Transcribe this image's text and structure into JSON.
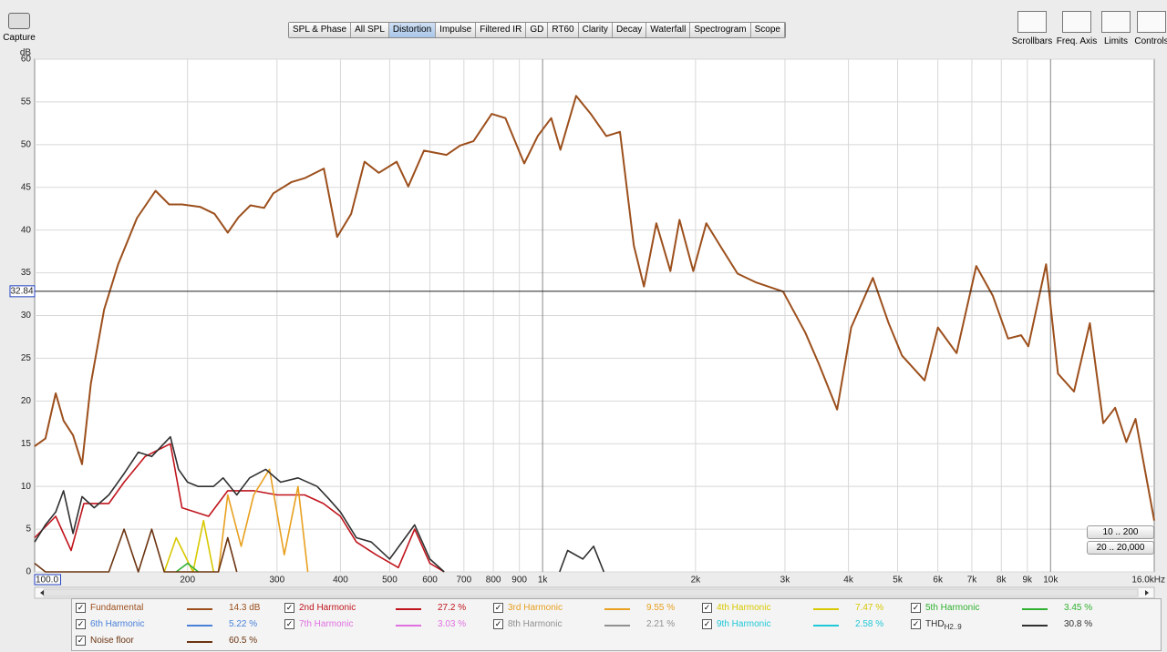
{
  "toolbar": {
    "capture": "Capture",
    "tabs": [
      "SPL & Phase",
      "All SPL",
      "Distortion",
      "Impulse",
      "Filtered IR",
      "GD",
      "RT60",
      "Clarity",
      "Decay",
      "Waterfall",
      "Spectrogram",
      "Scope"
    ],
    "selected_index": 2,
    "tools": [
      "Scrollbars",
      "Freq. Axis",
      "Limits",
      "Controls"
    ]
  },
  "chart_data": {
    "type": "line",
    "y_label": "dB",
    "log_x": true,
    "grid": true,
    "xlim": [
      100,
      16000
    ],
    "ylim": [
      0,
      60
    ],
    "yticks": [
      0,
      5,
      10,
      15,
      20,
      25,
      30,
      35,
      40,
      45,
      50,
      55,
      60
    ],
    "xticks": [
      {
        "value": 100,
        "label": "100.0"
      },
      200,
      300,
      400,
      500,
      600,
      700,
      800,
      900,
      {
        "value": 1000,
        "label": "1k"
      },
      {
        "value": 2000,
        "label": "2k"
      },
      {
        "value": 3000,
        "label": "3k"
      },
      {
        "value": 4000,
        "label": "4k"
      },
      {
        "value": 5000,
        "label": "5k"
      },
      {
        "value": 6000,
        "label": "6k"
      },
      {
        "value": 7000,
        "label": "7k"
      },
      {
        "value": 8000,
        "label": "8k"
      },
      {
        "value": 9000,
        "label": "9k"
      },
      {
        "value": 10000,
        "label": "10k"
      },
      {
        "value": 16000,
        "label": "16.0kHz"
      }
    ],
    "cursor": 32.84,
    "series": [
      {
        "name": "Fundamental",
        "color": "#9c4f1c",
        "readout": "14.3 dB",
        "x": [
          100,
          105,
          110,
          114,
          119,
          124,
          129,
          137,
          146,
          159,
          173,
          184,
          195,
          212,
          226,
          240,
          252,
          266,
          283,
          295,
          320,
          341,
          371,
          394,
          420,
          446,
          476,
          516,
          544,
          584,
          647,
          688,
          731,
          794,
          845,
          920,
          978,
          1040,
          1084,
          1164,
          1244,
          1335,
          1420,
          1512,
          1583,
          1675,
          1785,
          1860,
          1980,
          2100,
          2250,
          2420,
          2625,
          2975,
          3290,
          3500,
          3800,
          4050,
          4470,
          4800,
          5100,
          5650,
          6000,
          6530,
          7140,
          7700,
          8250,
          8750,
          9040,
          9800,
          10340,
          11120,
          11950,
          12700,
          13400,
          14100,
          14700,
          16000
        ],
        "values": [
          14.7,
          15.6,
          20.9,
          17.7,
          16,
          12.6,
          22,
          30.7,
          36,
          41.4,
          44.6,
          43,
          43,
          42.7,
          41.9,
          39.7,
          41.5,
          42.9,
          42.6,
          44.3,
          45.6,
          46.1,
          47.2,
          39.2,
          41.9,
          48,
          46.7,
          48,
          45.1,
          49.3,
          48.8,
          49.9,
          50.4,
          53.6,
          53.1,
          47.8,
          51,
          53.1,
          49.4,
          55.7,
          53.6,
          51,
          51.5,
          38.2,
          33.4,
          40.8,
          35.2,
          41.2,
          35.2,
          40.8,
          37.9,
          34.9,
          33.9,
          32.8,
          28,
          24.3,
          19,
          28.6,
          34.4,
          29.1,
          25.3,
          22.4,
          28.6,
          25.6,
          35.8,
          32.3,
          27.3,
          27.7,
          26.4,
          36,
          23.2,
          21.1,
          29.1,
          17.4,
          19.2,
          15.2,
          17.9,
          6
        ]
      },
      {
        "name": "2nd Harmonic",
        "color": "#c0141c",
        "readout": "27.2 %",
        "x": [
          100,
          110,
          118,
          125,
          140,
          150,
          165,
          185,
          195,
          220,
          240,
          270,
          300,
          340,
          370,
          400,
          430,
          470,
          520,
          560,
          600,
          640
        ],
        "values": [
          4,
          6.5,
          2.5,
          8,
          8,
          10.5,
          13.5,
          15,
          7.5,
          6.5,
          9.5,
          9.5,
          9,
          9,
          8,
          6.5,
          3.5,
          2,
          0.5,
          5,
          1,
          0
        ]
      },
      {
        "name": "3rd Harmonic",
        "color": "#e8a020",
        "readout": "9.55 %",
        "x": [
          230,
          240,
          255,
          270,
          290,
          310,
          330,
          345
        ],
        "values": [
          0,
          9,
          3,
          9,
          12,
          2,
          10,
          0
        ]
      },
      {
        "name": "4th Harmonic",
        "color": "#d8c800",
        "readout": "7.47 %",
        "x": [
          180,
          190,
          205,
          215,
          225
        ],
        "values": [
          0,
          4,
          0,
          6,
          0
        ]
      },
      {
        "name": "5th Harmonic",
        "color": "#30b030",
        "readout": "3.45 %",
        "x": [
          190,
          200,
          210
        ],
        "values": [
          0,
          1,
          0
        ]
      },
      {
        "name": "6th Harmonic",
        "color": "#4a80d8",
        "readout": "5.22 %"
      },
      {
        "name": "7th Harmonic",
        "color": "#e070e0",
        "readout": "3.03 %"
      },
      {
        "name": "8th Harmonic",
        "color": "#909090",
        "readout": "2.21 %"
      },
      {
        "name": "9th Harmonic",
        "color": "#20c8d8",
        "readout": "2.58 %"
      },
      {
        "name": "THD",
        "name_sub": "H2..9",
        "color": "#303030",
        "readout": "30.8 %",
        "x": [
          100,
          105,
          110,
          114,
          119,
          124,
          131,
          140,
          150,
          160,
          170,
          185,
          192,
          200,
          210,
          225,
          235,
          250,
          265,
          285,
          305,
          330,
          360,
          380,
          400,
          430,
          460,
          500,
          560,
          600,
          640,
          null,
          1080,
          1120,
          1200,
          1260,
          1320
        ],
        "values": [
          3.5,
          5.5,
          7,
          9.5,
          4.5,
          8.8,
          7.5,
          9,
          11.5,
          14,
          13.5,
          15.8,
          12,
          10.5,
          10,
          10,
          11,
          9,
          11,
          12,
          10.5,
          11,
          10,
          8.5,
          7,
          4,
          3.5,
          1.5,
          5.5,
          1.5,
          0,
          null,
          0,
          2.5,
          1.5,
          3,
          0
        ]
      },
      {
        "name": "Noise floor",
        "color": "#6b3410",
        "readout": "60.5 %",
        "x": [
          100,
          105,
          140,
          150,
          160,
          170,
          180,
          230,
          240,
          250
        ],
        "values": [
          1,
          0,
          0,
          5,
          0,
          5,
          0,
          0,
          4,
          0
        ]
      }
    ]
  },
  "range_buttons": [
    "10 .. 200",
    "20 .. 20,000"
  ]
}
